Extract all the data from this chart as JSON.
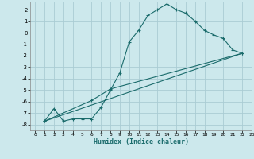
{
  "xlabel": "Humidex (Indice chaleur)",
  "bg_color": "#cce8ec",
  "grid_color": "#aaccd4",
  "line_color": "#1a6b6b",
  "xlim": [
    -0.5,
    23
  ],
  "ylim": [
    -8.5,
    2.7
  ],
  "xticks": [
    0,
    1,
    2,
    3,
    4,
    5,
    6,
    7,
    8,
    9,
    10,
    11,
    12,
    13,
    14,
    15,
    16,
    17,
    18,
    19,
    20,
    21,
    22,
    23
  ],
  "yticks": [
    2,
    1,
    0,
    -1,
    -2,
    -3,
    -4,
    -5,
    -6,
    -7,
    -8
  ],
  "line1_x": [
    1,
    2,
    3,
    4,
    5,
    6,
    7,
    8,
    9,
    10,
    11,
    12,
    13,
    14,
    15,
    16,
    17,
    18,
    19,
    20,
    21,
    22
  ],
  "line1_y": [
    -7.7,
    -6.6,
    -7.7,
    -7.5,
    -7.5,
    -7.5,
    -6.5,
    -5.0,
    -3.5,
    -0.8,
    0.2,
    1.5,
    2.0,
    2.5,
    2.0,
    1.7,
    1.0,
    0.2,
    -0.2,
    -0.5,
    -1.5,
    -1.8
  ],
  "line2_x": [
    1,
    6,
    8,
    22
  ],
  "line2_y": [
    -7.7,
    -5.9,
    -4.9,
    -1.8
  ],
  "line3_x": [
    1,
    22
  ],
  "line3_y": [
    -7.7,
    -1.8
  ]
}
